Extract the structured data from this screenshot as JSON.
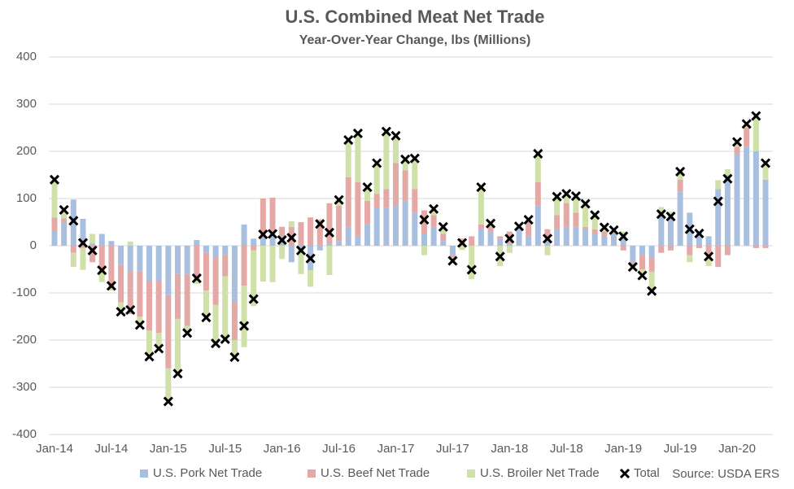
{
  "chart_data": {
    "type": "bar",
    "stacked": true,
    "title": "U.S. Combined Meat Net Trade",
    "subtitle": "Year-Over-Year Change, lbs (Millions)",
    "annotation": "Source: USDA ERS",
    "categories": [
      "Jan-14",
      null,
      null,
      null,
      null,
      null,
      "Jul-14",
      null,
      null,
      null,
      null,
      null,
      "Jan-15",
      null,
      null,
      null,
      null,
      null,
      "Jul-15",
      null,
      null,
      null,
      null,
      null,
      "Jan-16",
      null,
      null,
      null,
      null,
      null,
      "Jul-16",
      null,
      null,
      null,
      null,
      null,
      "Jan-17",
      null,
      null,
      null,
      null,
      null,
      "Jul-17",
      null,
      null,
      null,
      null,
      null,
      "Jan-18",
      null,
      null,
      null,
      null,
      null,
      "Jul-18",
      null,
      null,
      null,
      null,
      null,
      "Jan-19",
      null,
      null,
      null,
      null,
      null,
      "Jul-19",
      null,
      null,
      null,
      null,
      null,
      "Jan-20",
      null,
      null,
      null
    ],
    "series": [
      {
        "name": "U.S. Pork Net Trade",
        "color": "#a9bfe0",
        "values": [
          32,
          50,
          98,
          57,
          5,
          25,
          10,
          -40,
          -55,
          -55,
          -75,
          -75,
          -105,
          -60,
          -60,
          12,
          -15,
          -25,
          -20,
          -120,
          45,
          15,
          20,
          30,
          20,
          -35,
          -10,
          -52,
          -10,
          5,
          10,
          40,
          20,
          45,
          80,
          80,
          85,
          95,
          70,
          25,
          40,
          10,
          -20,
          5,
          0,
          35,
          30,
          15,
          5,
          35,
          20,
          85,
          10,
          35,
          40,
          40,
          35,
          25,
          20,
          25,
          25,
          -35,
          -20,
          -25,
          65,
          62,
          115,
          70,
          30,
          20,
          120,
          150,
          195,
          210,
          200,
          140
        ]
      },
      {
        "name": "U.S. Beef Net Trade",
        "color": "#e4a8a6",
        "values": [
          28,
          8,
          -15,
          -5,
          -35,
          -55,
          -90,
          -80,
          -90,
          -95,
          -105,
          -110,
          -155,
          -95,
          -110,
          -70,
          -80,
          -100,
          -45,
          -80,
          -85,
          -10,
          80,
          72,
          20,
          40,
          50,
          60,
          55,
          85,
          75,
          105,
          115,
          50,
          30,
          40,
          90,
          65,
          50,
          50,
          25,
          15,
          -5,
          10,
          20,
          10,
          10,
          5,
          25,
          5,
          30,
          50,
          25,
          30,
          50,
          30,
          5,
          10,
          10,
          5,
          -10,
          -10,
          -30,
          -30,
          -15,
          -10,
          25,
          -20,
          -5,
          -20,
          -45,
          -20,
          15,
          40,
          -5,
          -5
        ]
      },
      {
        "name": "U.S. Broiler Net Trade",
        "color": "#cfe0a8",
        "values": [
          80,
          18,
          -30,
          -46,
          20,
          -22,
          -5,
          -20,
          9,
          -18,
          -55,
          -33,
          -70,
          -116,
          -15,
          -11,
          -57,
          -82,
          -133,
          -36,
          -130,
          -118,
          -76,
          -77,
          -28,
          12,
          -50,
          -35,
          1,
          -62,
          12,
          79,
          103,
          29,
          65,
          122,
          58,
          23,
          65,
          -20,
          13,
          15,
          -7,
          -9,
          -71,
          79,
          7,
          -43,
          -15,
          1,
          5,
          60,
          -20,
          39,
          20,
          35,
          49,
          30,
          9,
          3,
          5,
          0,
          -13,
          -41,
          17,
          10,
          17,
          -15,
          1,
          -23,
          19,
          12,
          10,
          8,
          80,
          40
        ]
      },
      {
        "name": "Total",
        "color": "#000000",
        "marker": "x",
        "values": [
          140,
          76,
          53,
          6,
          -10,
          -52,
          -85,
          -140,
          -136,
          -168,
          -235,
          -218,
          -330,
          -271,
          -185,
          -69,
          -152,
          -207,
          -198,
          -236,
          -170,
          -113,
          24,
          25,
          12,
          17,
          -10,
          -27,
          46,
          28,
          97,
          224,
          238,
          124,
          175,
          242,
          233,
          183,
          185,
          55,
          78,
          40,
          -32,
          6,
          -51,
          124,
          47,
          -23,
          15,
          41,
          55,
          195,
          15,
          104,
          110,
          105,
          89,
          65,
          39,
          33,
          20,
          -45,
          -63,
          -96,
          67,
          62,
          157,
          35,
          26,
          -23,
          94,
          142,
          220,
          258,
          275,
          175
        ]
      }
    ],
    "ylim": [
      -400,
      400
    ],
    "yticks": [
      -400,
      -300,
      -200,
      -100,
      0,
      100,
      200,
      300,
      400
    ],
    "grid": true,
    "legend": "bottom"
  }
}
